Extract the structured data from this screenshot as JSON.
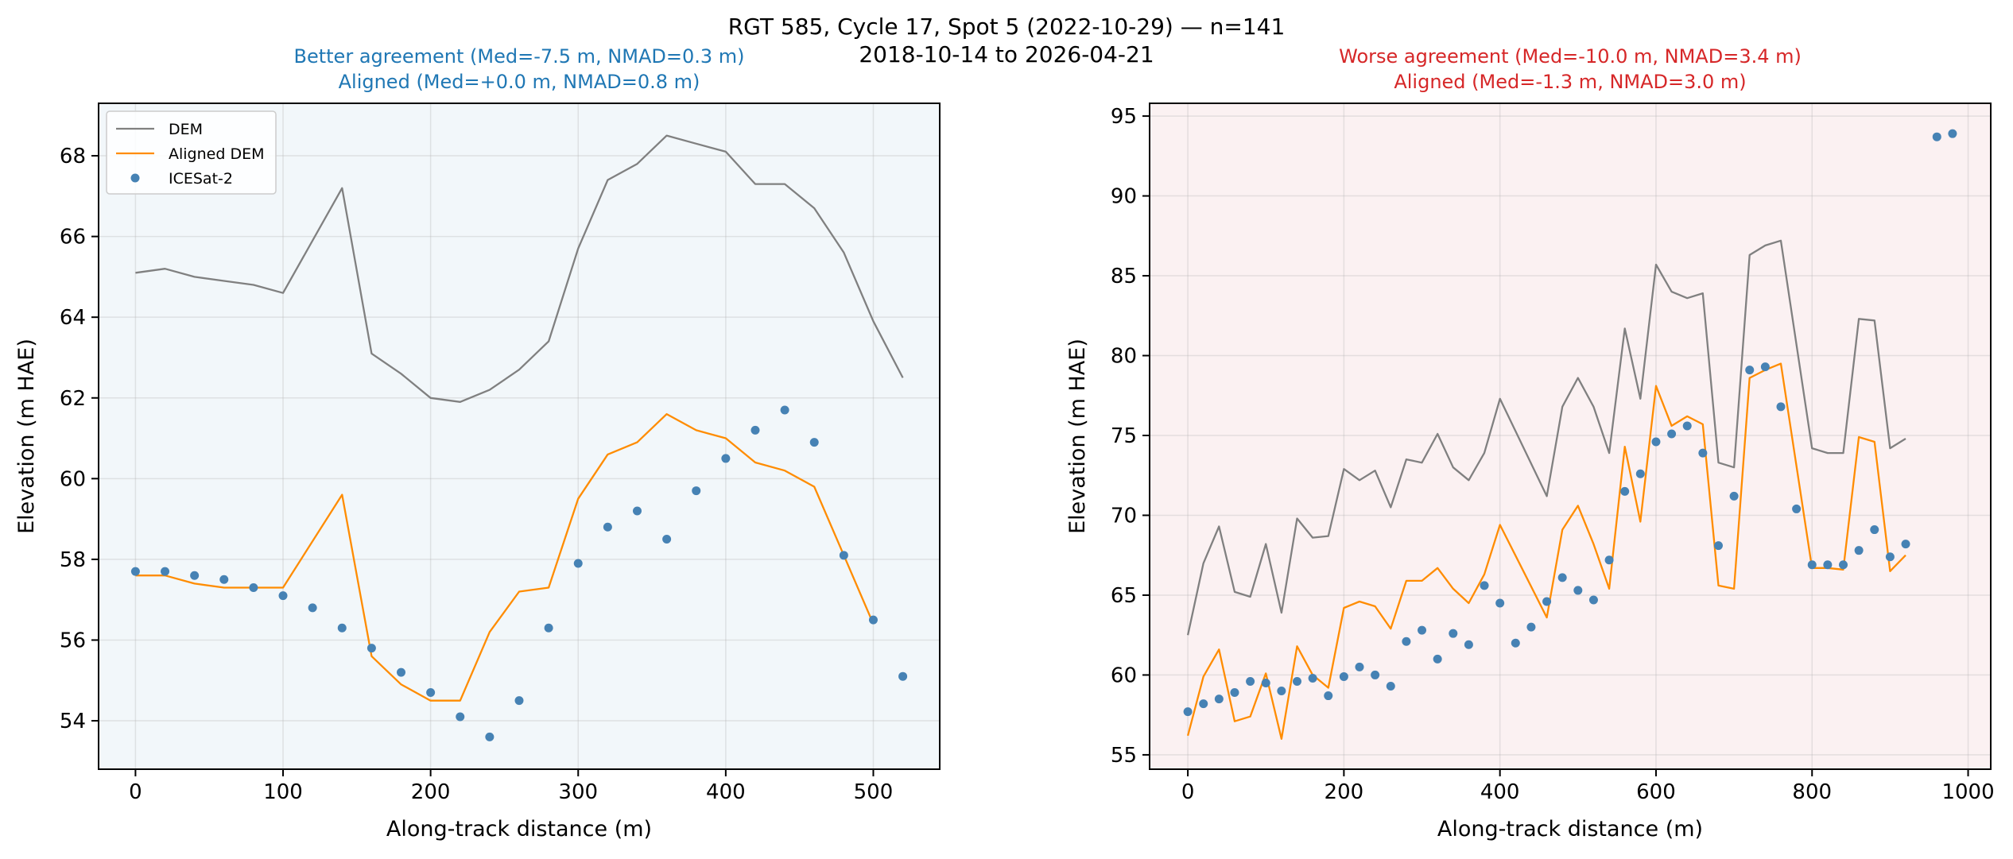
{
  "figure": {
    "suptitle_line1": "RGT 585, Cycle 17, Spot 5 (2022-10-29) — n=141",
    "suptitle_line2": "2018-10-14 to 2026-04-21"
  },
  "colors": {
    "dem": "#808080",
    "aligned": "#ff8c00",
    "icesat": "#4682b4",
    "left_bg": "#f2f7fa",
    "right_bg": "#fbf1f2",
    "good_text": "#1f77b4",
    "bad_text": "#d62728"
  },
  "chart_data": [
    {
      "type": "line",
      "subtitle_line1": "Better agreement (Med=-7.5 m, NMAD=0.3 m)",
      "subtitle_line2": "Aligned (Med=+0.0 m, NMAD=0.8 m)",
      "xlabel": "Along-track distance (m)",
      "ylabel": "Elevation (m HAE)",
      "xlim": [
        -25,
        545
      ],
      "ylim": [
        52.8,
        69.3
      ],
      "xticks": [
        0,
        100,
        200,
        300,
        400,
        500
      ],
      "yticks": [
        54,
        56,
        58,
        60,
        62,
        64,
        66,
        68
      ],
      "grid": true,
      "legend": {
        "position": "top-left",
        "entries": [
          "DEM",
          "Aligned DEM",
          "ICESat-2"
        ]
      },
      "series": [
        {
          "name": "DEM",
          "kind": "line",
          "x": [
            0,
            20,
            40,
            60,
            80,
            100,
            140,
            160,
            180,
            200,
            220,
            240,
            260,
            280,
            300,
            320,
            340,
            360,
            380,
            400,
            420,
            440,
            460,
            480,
            500,
            520
          ],
          "y": [
            65.1,
            65.2,
            65.0,
            64.9,
            64.8,
            64.6,
            67.2,
            63.1,
            62.6,
            62.0,
            61.9,
            62.2,
            62.7,
            63.4,
            65.7,
            67.4,
            67.8,
            68.5,
            68.3,
            68.1,
            67.3,
            67.3,
            66.7,
            65.6,
            63.9,
            62.5
          ]
        },
        {
          "name": "Aligned DEM",
          "kind": "line",
          "x": [
            0,
            20,
            40,
            60,
            80,
            100,
            140,
            160,
            180,
            200,
            220,
            240,
            260,
            280,
            300,
            320,
            340,
            360,
            380,
            400,
            420,
            440,
            460,
            480,
            500
          ],
          "y": [
            57.6,
            57.6,
            57.4,
            57.3,
            57.3,
            57.3,
            59.6,
            55.6,
            54.9,
            54.5,
            54.5,
            56.2,
            57.2,
            57.3,
            59.5,
            60.6,
            60.9,
            61.6,
            61.2,
            61.0,
            60.4,
            60.2,
            59.8,
            58.1,
            56.4
          ]
        },
        {
          "name": "ICESat-2",
          "kind": "scatter",
          "x": [
            0,
            20,
            40,
            60,
            80,
            100,
            120,
            140,
            160,
            180,
            200,
            220,
            240,
            260,
            280,
            300,
            320,
            340,
            360,
            380,
            400,
            420,
            440,
            460,
            480,
            500,
            520
          ],
          "y": [
            57.7,
            57.7,
            57.6,
            57.5,
            57.3,
            57.1,
            56.8,
            56.3,
            55.8,
            55.2,
            54.7,
            54.1,
            53.6,
            54.5,
            56.3,
            57.9,
            58.8,
            59.2,
            58.5,
            59.7,
            60.5,
            61.2,
            61.7,
            60.9,
            58.1,
            56.5,
            55.1
          ]
        }
      ]
    },
    {
      "type": "line",
      "subtitle_line1": "Worse agreement (Med=-10.0 m, NMAD=3.4 m)",
      "subtitle_line2": "Aligned (Med=-1.3 m, NMAD=3.0 m)",
      "xlabel": "Along-track distance (m)",
      "ylabel": "Elevation (m HAE)",
      "xlim": [
        -49,
        1029
      ],
      "ylim": [
        54.1,
        95.8
      ],
      "xticks": [
        0,
        200,
        400,
        600,
        800,
        1000
      ],
      "yticks": [
        55,
        60,
        65,
        70,
        75,
        80,
        85,
        90,
        95
      ],
      "grid": true,
      "series": [
        {
          "name": "DEM",
          "kind": "line",
          "x": [
            0,
            20,
            40,
            60,
            80,
            100,
            120,
            140,
            160,
            180,
            200,
            220,
            240,
            260,
            280,
            300,
            320,
            340,
            360,
            380,
            400,
            460,
            480,
            500,
            520,
            540,
            560,
            580,
            600,
            620,
            640,
            660,
            680,
            700,
            720,
            740,
            760,
            800,
            820,
            840,
            860,
            880,
            900,
            920
          ],
          "y": [
            62.5,
            67.0,
            69.3,
            65.2,
            64.9,
            68.2,
            63.9,
            69.8,
            68.6,
            68.7,
            72.9,
            72.2,
            72.8,
            70.5,
            73.5,
            73.3,
            75.1,
            73.0,
            72.2,
            73.9,
            77.3,
            71.2,
            76.8,
            78.6,
            76.8,
            73.9,
            81.7,
            77.3,
            85.7,
            84.0,
            83.6,
            83.9,
            73.3,
            73.0,
            86.3,
            86.9,
            87.2,
            74.2,
            73.9,
            73.9,
            82.3,
            82.2,
            74.2,
            74.8
          ]
        },
        {
          "name": "Aligned DEM",
          "kind": "line",
          "x": [
            0,
            20,
            40,
            60,
            80,
            100,
            120,
            140,
            160,
            180,
            200,
            220,
            240,
            260,
            280,
            300,
            320,
            340,
            360,
            380,
            400,
            460,
            480,
            500,
            520,
            540,
            560,
            580,
            600,
            620,
            640,
            660,
            680,
            700,
            720,
            740,
            760,
            800,
            820,
            840,
            860,
            880,
            900,
            920
          ],
          "y": [
            56.2,
            59.9,
            61.6,
            57.1,
            57.4,
            60.1,
            56.0,
            61.8,
            60.0,
            59.2,
            64.2,
            64.6,
            64.3,
            62.9,
            65.9,
            65.9,
            66.7,
            65.4,
            64.5,
            66.3,
            69.4,
            63.6,
            69.1,
            70.6,
            68.2,
            65.4,
            74.3,
            69.6,
            78.1,
            75.6,
            76.2,
            75.7,
            65.6,
            65.4,
            78.6,
            79.1,
            79.5,
            66.7,
            66.7,
            66.6,
            74.9,
            74.6,
            66.5,
            67.5
          ]
        },
        {
          "name": "ICESat-2",
          "kind": "scatter",
          "x": [
            0,
            20,
            40,
            60,
            80,
            100,
            120,
            140,
            160,
            180,
            200,
            220,
            240,
            260,
            280,
            300,
            320,
            340,
            360,
            380,
            400,
            420,
            440,
            460,
            480,
            500,
            520,
            540,
            560,
            580,
            600,
            620,
            640,
            660,
            680,
            700,
            720,
            740,
            760,
            780,
            800,
            820,
            840,
            860,
            880,
            900,
            920,
            960,
            980
          ],
          "y": [
            57.7,
            58.2,
            58.5,
            58.9,
            59.6,
            59.5,
            59.0,
            59.6,
            59.8,
            58.7,
            59.9,
            60.5,
            60.0,
            59.3,
            62.1,
            62.8,
            61.0,
            62.6,
            61.9,
            65.6,
            64.5,
            62.0,
            63.0,
            64.6,
            66.1,
            65.3,
            64.7,
            67.2,
            71.5,
            72.6,
            74.6,
            75.1,
            75.6,
            73.9,
            68.1,
            71.2,
            79.1,
            79.3,
            76.8,
            70.4,
            66.9,
            66.9,
            66.9,
            67.8,
            69.1,
            67.4,
            68.2,
            93.7,
            93.9
          ]
        }
      ]
    }
  ]
}
